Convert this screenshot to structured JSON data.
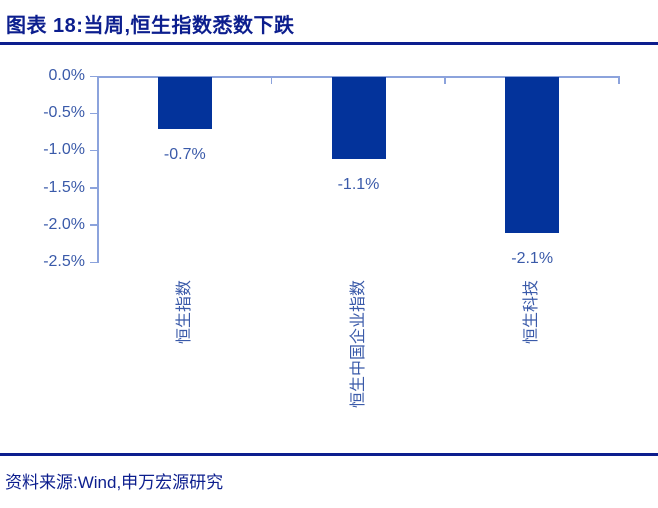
{
  "header": {
    "title": "图表 18:当周,恒生指数悉数下跌"
  },
  "footer": {
    "source": "资料来源:Wind,申万宏源研究"
  },
  "colors": {
    "navy": "#0c1e8e",
    "bar": "#03339b",
    "axis": "#8ca3dc",
    "label_text": "#3a5aa9"
  },
  "chart_data": {
    "type": "bar",
    "title": "图表 18:当周,恒生指数悉数下跌",
    "categories": [
      "恒生指数",
      "恒生中国企业指数",
      "恒生科技"
    ],
    "values": [
      -0.7,
      -1.1,
      -2.1
    ],
    "labels": [
      "-0.7%",
      "-1.1%",
      "-2.1%"
    ],
    "xlabel": "",
    "ylabel": "",
    "ylim": [
      -2.5,
      0
    ],
    "ytick_step": 0.5,
    "ytick_labels": [
      "0.0%",
      "-0.5%",
      "-1.0%",
      "-1.5%",
      "-2.0%",
      "-2.5%"
    ],
    "grid": false,
    "legend": false,
    "bar_color": "#03339b",
    "source": "资料来源:Wind,申万宏源研究"
  }
}
